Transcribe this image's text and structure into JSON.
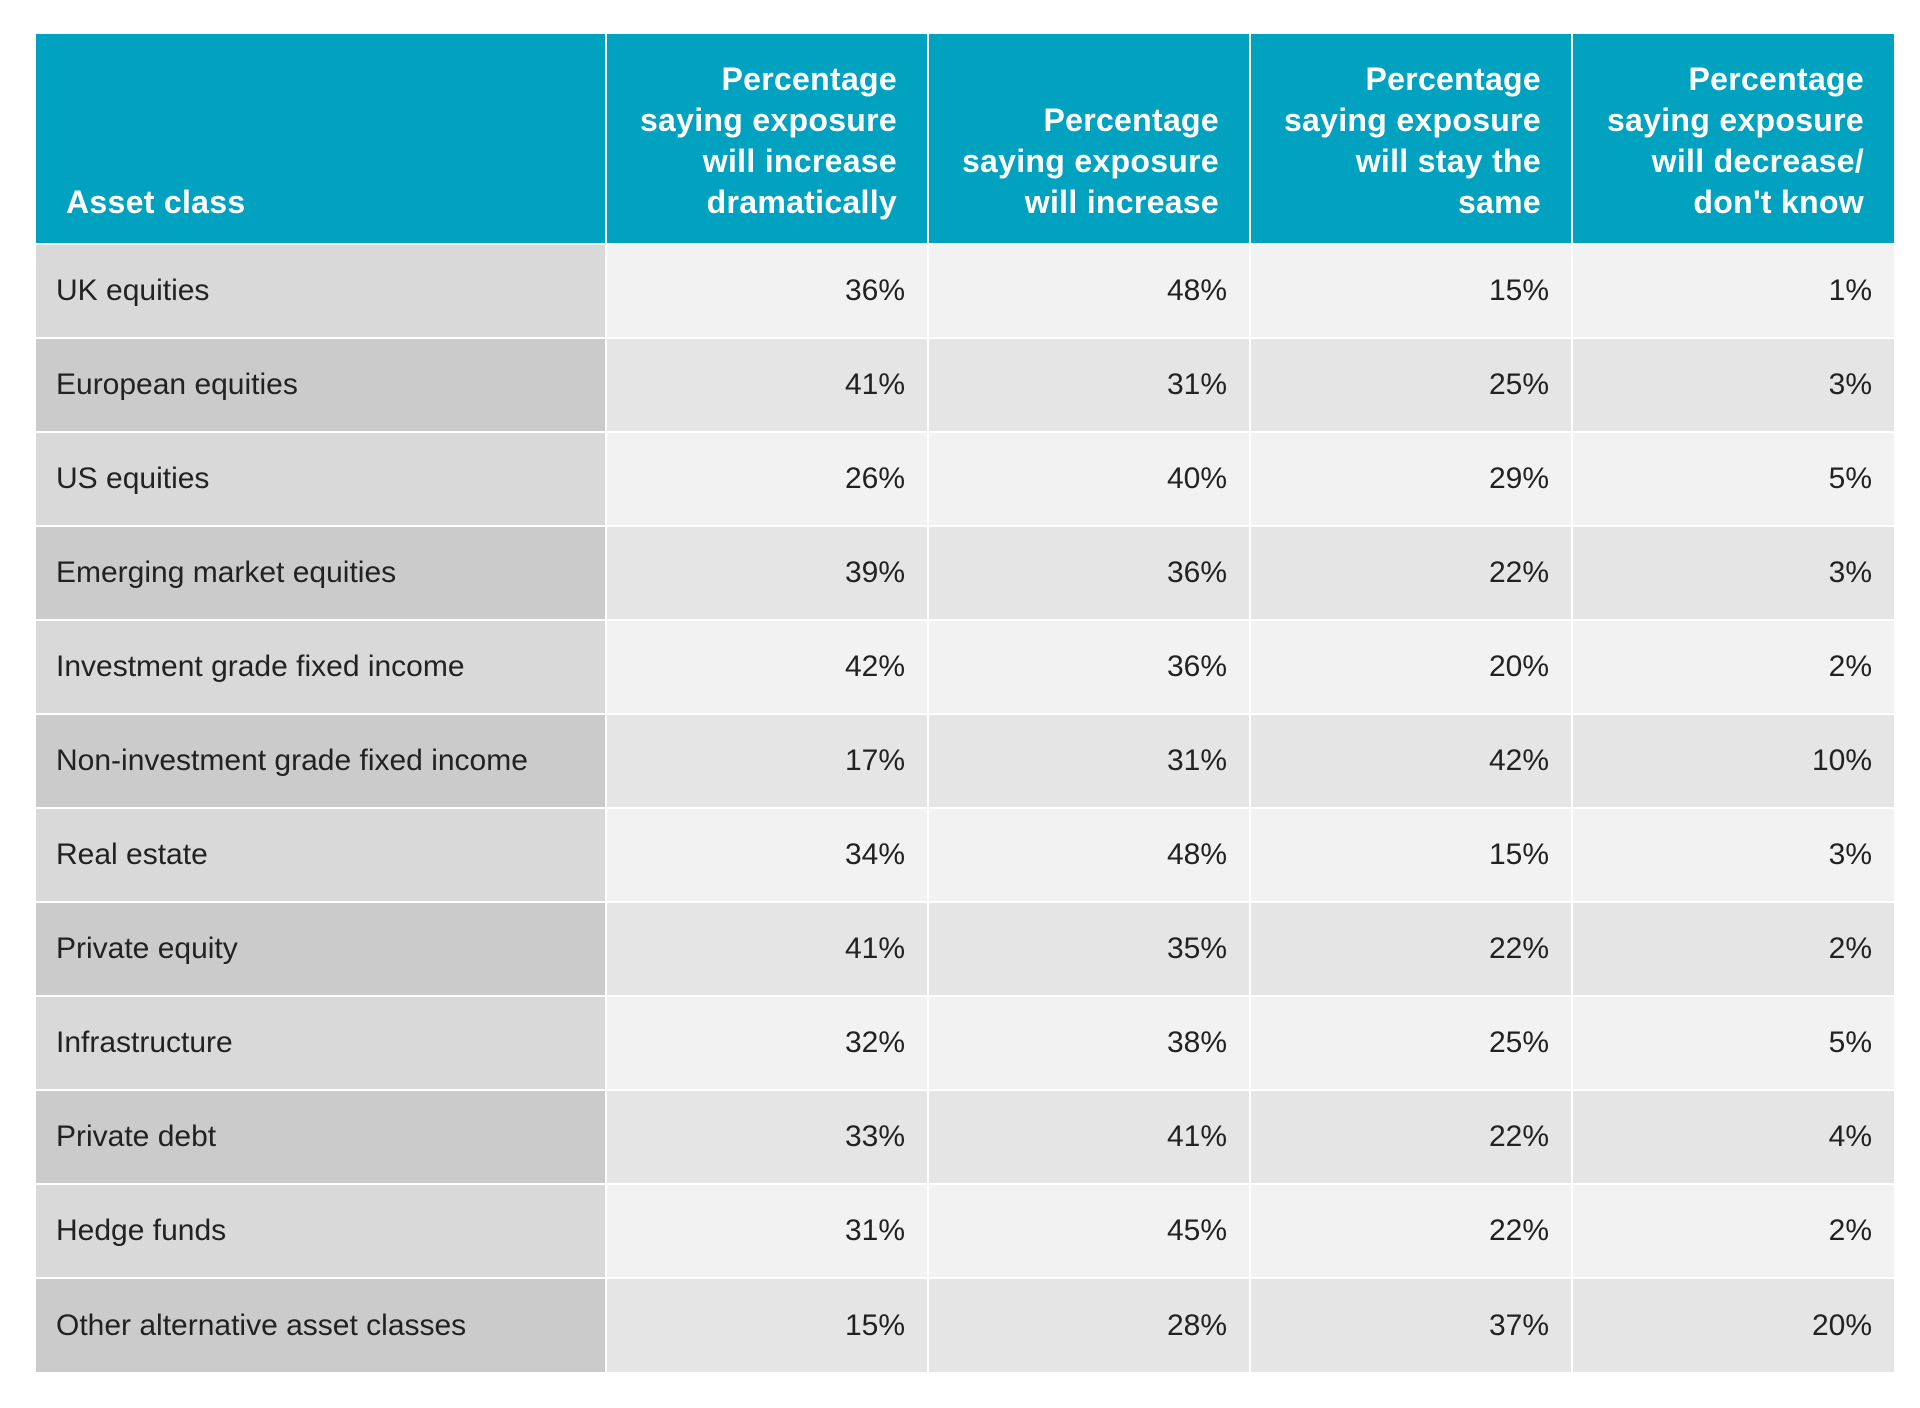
{
  "chart_data": {
    "type": "table",
    "columns": [
      "Asset class",
      "Percentage saying exposure will increase dramatically",
      "Percentage saying exposure will increase",
      "Percentage saying exposure will stay the same",
      "Percentage saying exposure will decrease/ don't know"
    ],
    "header_lines": [
      [
        "Asset class"
      ],
      [
        "Percentage",
        "saying exposure",
        "will increase",
        "dramatically"
      ],
      [
        "Percentage",
        "saying exposure",
        "will increase"
      ],
      [
        "Percentage",
        "saying exposure",
        "will stay the",
        "same"
      ],
      [
        "Percentage",
        "saying exposure",
        "will decrease/",
        "don't know"
      ]
    ],
    "rows": [
      {
        "label": "UK equities",
        "values": [
          "36%",
          "48%",
          "15%",
          "1%"
        ]
      },
      {
        "label": "European equities",
        "values": [
          "41%",
          "31%",
          "25%",
          "3%"
        ]
      },
      {
        "label": "US equities",
        "values": [
          "26%",
          "40%",
          "29%",
          "5%"
        ]
      },
      {
        "label": "Emerging market equities",
        "values": [
          "39%",
          "36%",
          "22%",
          "3%"
        ]
      },
      {
        "label": "Investment grade fixed income",
        "values": [
          "42%",
          "36%",
          "20%",
          "2%"
        ]
      },
      {
        "label": "Non-investment grade fixed income",
        "values": [
          "17%",
          "31%",
          "42%",
          "10%"
        ]
      },
      {
        "label": "Real estate",
        "values": [
          "34%",
          "48%",
          "15%",
          "3%"
        ]
      },
      {
        "label": "Private equity",
        "values": [
          "41%",
          "35%",
          "22%",
          "2%"
        ]
      },
      {
        "label": "Infrastructure",
        "values": [
          "32%",
          "38%",
          "25%",
          "5%"
        ]
      },
      {
        "label": "Private debt",
        "values": [
          "33%",
          "41%",
          "22%",
          "4%"
        ]
      },
      {
        "label": "Hedge funds",
        "values": [
          "31%",
          "45%",
          "22%",
          "2%"
        ]
      },
      {
        "label": "Other alternative asset classes",
        "values": [
          "15%",
          "28%",
          "37%",
          "20%"
        ]
      }
    ]
  },
  "colors": {
    "header_bg": "#00a2bf",
    "header_text": "#ffffff",
    "label_odd": "#d9d9d9",
    "label_even": "#cbcbcb",
    "value_odd": "#f2f2f2",
    "value_even": "#e5e5e5"
  }
}
